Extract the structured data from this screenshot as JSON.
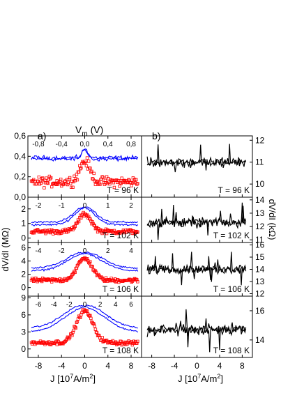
{
  "figure": {
    "label_a": "a)",
    "label_b": "b)",
    "top_axis_a": "V",
    "top_axis_a_sub": "m",
    "top_axis_a_unit": " (V)",
    "xlabel": "J [10",
    "xlabel_exp": "7",
    "xlabel_mid": "A/m",
    "xlabel_exp2": "2",
    "xlabel_end": "]",
    "ylabel_left": "dV/dI (MΩ)",
    "ylabel_right": "dV/dI (kΩ)"
  },
  "colors": {
    "blue_curve": "#0000ff",
    "red_markers": "#ff0000",
    "black_curve": "#000000"
  },
  "chart_data": [
    {
      "type": "line",
      "panel": "a",
      "temperature": "T = 96 K",
      "xlim": [
        -9.8,
        9.8
      ],
      "ylim": [
        0,
        0.6
      ],
      "yticks": [
        "0,0",
        "0,2",
        "0,4",
        "0,6"
      ],
      "top_ticks": [
        "-0,8",
        "-0,4",
        "0,0",
        "0,4",
        "0,8"
      ],
      "top_ticks_pos": [
        -8,
        -4,
        0,
        4,
        8
      ],
      "series": [
        {
          "style": "blue-line",
          "base": 0.38,
          "peak": 0.09,
          "width": 0.5,
          "noise": 0.03
        },
        {
          "style": "red-open-squares",
          "base": 0.15,
          "peak": 0.2,
          "width": 0.9,
          "noise": 0.045
        }
      ]
    },
    {
      "type": "line",
      "panel": "a",
      "temperature": "T = 102 K",
      "xlim": [
        -9.8,
        9.8
      ],
      "ylim": [
        -0.3,
        2.8
      ],
      "yticks": [
        "0",
        "1",
        "2"
      ],
      "top_ticks": [
        "-2",
        "-1",
        "0",
        "1",
        "2"
      ],
      "top_ticks_pos": [
        -8,
        -4,
        0,
        4,
        8
      ],
      "series": [
        {
          "style": "blue-line",
          "base": 1.0,
          "peak": 1.1,
          "width": 1.8,
          "noise": 0.1
        },
        {
          "style": "red-open-squares",
          "base": 0.45,
          "peak": 1.2,
          "width": 1.1,
          "noise": 0.14
        }
      ]
    },
    {
      "type": "line",
      "panel": "a",
      "temperature": "T = 106 K",
      "xlim": [
        -9.8,
        9.8
      ],
      "ylim": [
        -1.3,
        6.8
      ],
      "yticks": [
        "0",
        "2",
        "4",
        "6"
      ],
      "top_ticks": [
        "-4",
        "-2",
        "0",
        "2",
        "4"
      ],
      "top_ticks_pos": [
        -8,
        -4,
        0,
        4,
        8
      ],
      "series": [
        {
          "style": "blue-line",
          "base": 2.7,
          "peak": 2.5,
          "width": 3.0,
          "noise": 0.2
        },
        {
          "style": "red-open-squares",
          "base": 1.1,
          "peak": 3.3,
          "width": 1.3,
          "noise": 0.28
        }
      ]
    },
    {
      "type": "line",
      "panel": "a",
      "temperature": "T = 108 K",
      "xlim": [
        -9.8,
        9.8
      ],
      "ylim": [
        -1.5,
        9.3
      ],
      "yticks": [
        "0",
        "3",
        "6",
        "9"
      ],
      "top_ticks": [
        "-6",
        "-4",
        "-2",
        "0",
        "2",
        "4",
        "6"
      ],
      "top_ticks_pos": [
        -8,
        -5.33,
        -2.67,
        0,
        2.67,
        5.33,
        8
      ],
      "series": [
        {
          "style": "blue-line",
          "base": 3.3,
          "peak": 4.2,
          "width": 3.5,
          "noise": 0.2
        },
        {
          "style": "red-open-squares",
          "base": 1.1,
          "peak": 5.6,
          "width": 1.4,
          "noise": 0.35
        }
      ]
    },
    {
      "type": "line",
      "panel": "b",
      "temperature": "T = 96 K",
      "xlim": [
        -9.8,
        9.8
      ],
      "ylim": [
        9.4,
        12.2
      ],
      "yticks": [
        "10",
        "11",
        "12"
      ],
      "series": [
        {
          "style": "black-line",
          "base": 11.0,
          "noise": 0.22
        }
      ]
    },
    {
      "type": "line",
      "panel": "b",
      "temperature": "T = 102 K",
      "xlim": [
        -9.8,
        9.8
      ],
      "ylim": [
        10.8,
        14.2
      ],
      "yticks": [
        "11",
        "12",
        "13",
        "14"
      ],
      "series": [
        {
          "style": "black-line",
          "base": 12.3,
          "noise": 0.35
        }
      ]
    },
    {
      "type": "line",
      "panel": "b",
      "temperature": "T = 106 K",
      "xlim": [
        -9.8,
        9.8
      ],
      "ylim": [
        11.8,
        16.2
      ],
      "yticks": [
        "12",
        "13",
        "14",
        "15",
        "16"
      ],
      "series": [
        {
          "style": "black-line",
          "base": 14.0,
          "noise": 0.35
        }
      ]
    },
    {
      "type": "line",
      "panel": "b",
      "temperature": "T = 108 K",
      "xlim": [
        -9.8,
        9.8
      ],
      "ylim": [
        12.8,
        17.0
      ],
      "yticks": [
        "14",
        "16"
      ],
      "series": [
        {
          "style": "black-line",
          "base": 14.7,
          "noise": 0.35
        }
      ]
    }
  ],
  "x_ticks": [
    "-8",
    "-4",
    "0",
    "4",
    "8"
  ]
}
